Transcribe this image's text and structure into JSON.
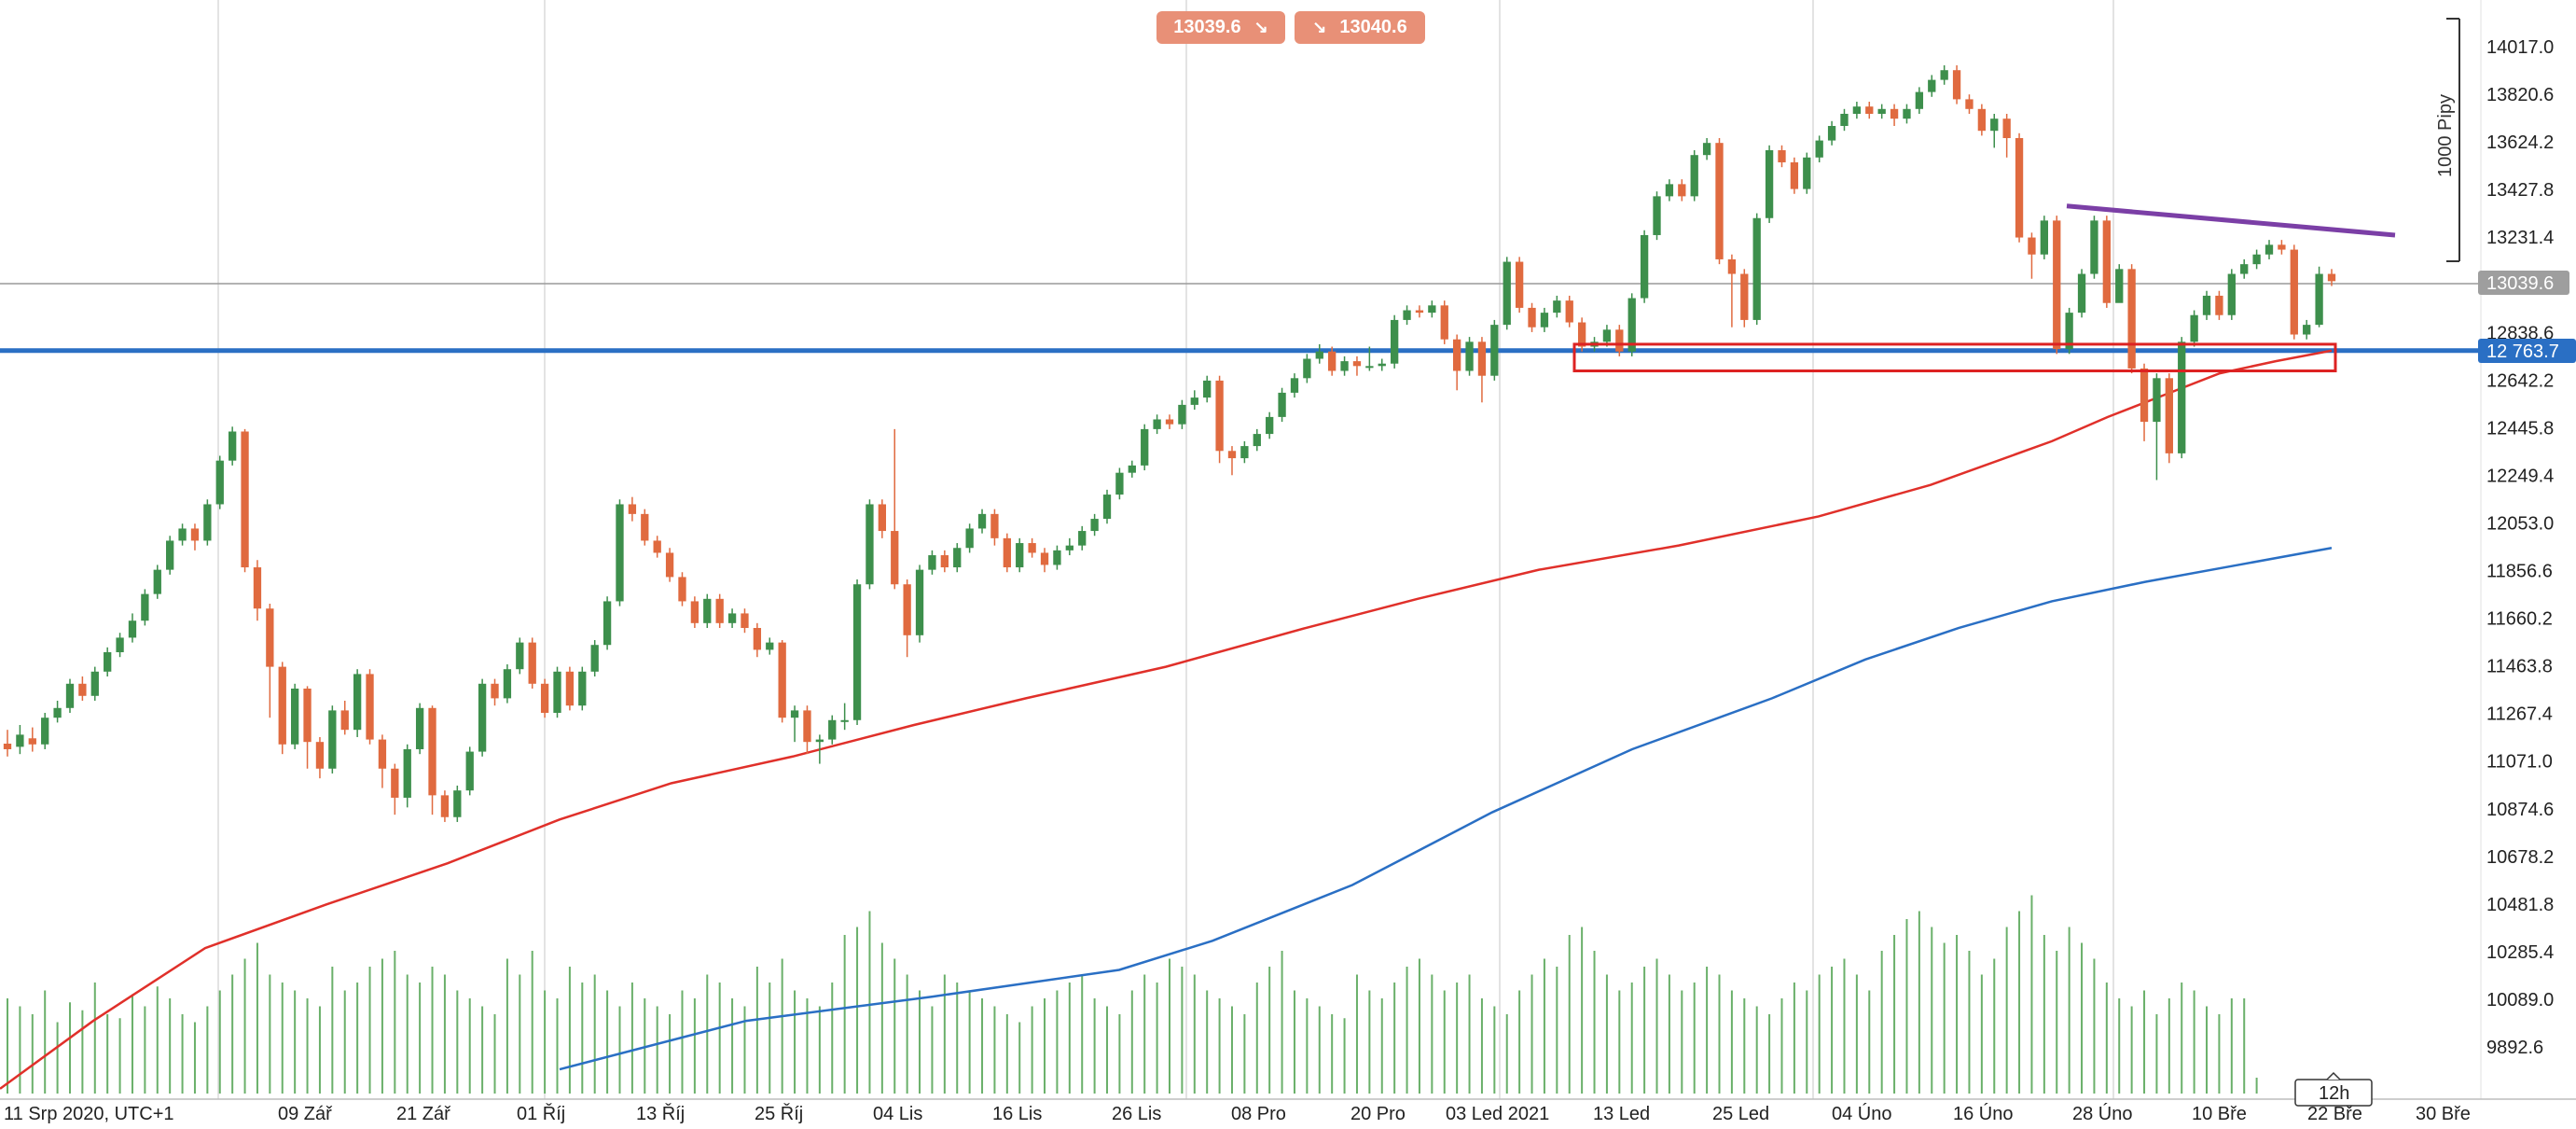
{
  "quote": {
    "sell_price": "13039.6",
    "buy_price": "13040.6",
    "sell_arrow": "↘",
    "buy_arrow": "↘"
  },
  "timeframe": "12h",
  "scale_note": "1000 Pipy",
  "current_price_label": "13039.6",
  "support_label": "12 763.7",
  "colors": {
    "up_candle": "#3d8f4c",
    "down_candle": "#e06a3f",
    "ma_fast": "#e0302a",
    "ma_slow": "#2a6fc4",
    "support_line": "#2a6fc4",
    "trendline": "#7b3fa6",
    "zone": "#dd2222",
    "volume": "#6ab06a",
    "quote_button": "#e89077"
  },
  "chart_data": {
    "type": "candlestick",
    "x_tick_labels": [
      "11 Srp 2020, UTC+1",
      "09 Zář",
      "21 Zář",
      "01 Říj",
      "13 Říj",
      "25 Říj",
      "04 Lis",
      "16 Lis",
      "26 Lis",
      "08 Pro",
      "20 Pro",
      "03 Led 2021",
      "13 Led",
      "25 Led",
      "04 Úno",
      "16 Úno",
      "28 Úno",
      "10 Bře",
      "22 Bře",
      "30 Bře"
    ],
    "y_tick_labels": [
      "14017.0",
      "13820.6",
      "13624.2",
      "13427.8",
      "13231.4",
      "12838.6",
      "12642.2",
      "12445.8",
      "12249.4",
      "12053.0",
      "11856.6",
      "11660.2",
      "11463.8",
      "11267.4",
      "11071.0",
      "10874.6",
      "10678.2",
      "10481.8",
      "10285.4",
      "10089.0",
      "9892.6"
    ],
    "ylim": [
      9790,
      14170
    ],
    "grid": "vertical",
    "horizontal_levels": [
      {
        "name": "support",
        "value": 12763.7
      },
      {
        "name": "current",
        "value": 13039.6
      }
    ],
    "zone": {
      "from": "13 Led",
      "to": "22 Bře",
      "low": 12680,
      "high": 12790
    },
    "trendline": [
      {
        "x": "28 Úno",
        "y": 13360
      },
      {
        "x": "30 Bře",
        "y": 13240
      }
    ],
    "candles": [
      [
        11143,
        11120,
        11200,
        11090
      ],
      [
        11130,
        11180,
        11220,
        11100
      ],
      [
        11165,
        11140,
        11210,
        11110
      ],
      [
        11140,
        11250,
        11270,
        11120
      ],
      [
        11250,
        11290,
        11320,
        11230
      ],
      [
        11290,
        11390,
        11410,
        11270
      ],
      [
        11390,
        11340,
        11420,
        11320
      ],
      [
        11340,
        11440,
        11460,
        11320
      ],
      [
        11440,
        11520,
        11540,
        11420
      ],
      [
        11520,
        11580,
        11600,
        11500
      ],
      [
        11580,
        11650,
        11680,
        11560
      ],
      [
        11650,
        11760,
        11780,
        11630
      ],
      [
        11760,
        11860,
        11880,
        11740
      ],
      [
        11860,
        11980,
        12000,
        11840
      ],
      [
        11980,
        12030,
        12050,
        11960
      ],
      [
        12030,
        11980,
        12050,
        11940
      ],
      [
        11980,
        12130,
        12150,
        11960
      ],
      [
        12130,
        12310,
        12330,
        12110
      ],
      [
        12310,
        12430,
        12450,
        12290
      ],
      [
        12430,
        11870,
        12440,
        11850
      ],
      [
        11870,
        11700,
        11900,
        11650
      ],
      [
        11700,
        11460,
        11720,
        11250
      ],
      [
        11460,
        11140,
        11480,
        11100
      ],
      [
        11140,
        11370,
        11390,
        11120
      ],
      [
        11370,
        11150,
        11380,
        11040
      ],
      [
        11150,
        11040,
        11170,
        11000
      ],
      [
        11040,
        11280,
        11300,
        11020
      ],
      [
        11280,
        11200,
        11320,
        11180
      ],
      [
        11200,
        11430,
        11450,
        11170
      ],
      [
        11430,
        11160,
        11450,
        11140
      ],
      [
        11160,
        11040,
        11180,
        10960
      ],
      [
        11040,
        10920,
        11060,
        10850
      ],
      [
        10920,
        11120,
        11140,
        10880
      ],
      [
        11120,
        11290,
        11310,
        11100
      ],
      [
        11290,
        10930,
        11300,
        10850
      ],
      [
        10930,
        10840,
        10950,
        10820
      ],
      [
        10840,
        10950,
        10970,
        10820
      ],
      [
        10950,
        11110,
        11130,
        10930
      ],
      [
        11110,
        11390,
        11410,
        11090
      ],
      [
        11390,
        11330,
        11410,
        11300
      ],
      [
        11330,
        11450,
        11470,
        11310
      ],
      [
        11450,
        11560,
        11580,
        11430
      ],
      [
        11560,
        11390,
        11580,
        11370
      ],
      [
        11390,
        11270,
        11410,
        11250
      ],
      [
        11270,
        11440,
        11460,
        11250
      ],
      [
        11440,
        11300,
        11460,
        11280
      ],
      [
        11300,
        11440,
        11460,
        11280
      ],
      [
        11440,
        11550,
        11570,
        11420
      ],
      [
        11550,
        11730,
        11750,
        11530
      ],
      [
        11730,
        12130,
        12150,
        11710
      ],
      [
        12130,
        12090,
        12160,
        12060
      ],
      [
        12090,
        11980,
        12110,
        11960
      ],
      [
        11980,
        11930,
        12000,
        11910
      ],
      [
        11930,
        11830,
        11950,
        11810
      ],
      [
        11830,
        11730,
        11850,
        11710
      ],
      [
        11730,
        11640,
        11750,
        11620
      ],
      [
        11640,
        11740,
        11760,
        11620
      ],
      [
        11740,
        11640,
        11760,
        11620
      ],
      [
        11640,
        11680,
        11700,
        11620
      ],
      [
        11680,
        11620,
        11700,
        11600
      ],
      [
        11620,
        11530,
        11640,
        11500
      ],
      [
        11530,
        11560,
        11580,
        11510
      ],
      [
        11560,
        11250,
        11570,
        11230
      ],
      [
        11250,
        11280,
        11300,
        11150
      ],
      [
        11280,
        11150,
        11300,
        11100
      ],
      [
        11150,
        11160,
        11180,
        11060
      ],
      [
        11160,
        11240,
        11260,
        11140
      ],
      [
        11240,
        11240,
        11310,
        11200
      ],
      [
        11240,
        11800,
        11820,
        11220
      ],
      [
        11800,
        12130,
        12150,
        11780
      ],
      [
        12130,
        12020,
        12150,
        11990
      ],
      [
        12020,
        11800,
        12440,
        11780
      ],
      [
        11800,
        11590,
        11820,
        11500
      ],
      [
        11590,
        11860,
        11880,
        11560
      ],
      [
        11860,
        11920,
        11940,
        11840
      ],
      [
        11920,
        11870,
        11940,
        11850
      ],
      [
        11870,
        11950,
        11970,
        11850
      ],
      [
        11950,
        12030,
        12050,
        11930
      ],
      [
        12030,
        12090,
        12110,
        12010
      ],
      [
        12090,
        11990,
        12110,
        11960
      ],
      [
        11990,
        11870,
        12010,
        11850
      ],
      [
        11870,
        11970,
        11990,
        11850
      ],
      [
        11970,
        11930,
        11990,
        11910
      ],
      [
        11930,
        11880,
        11950,
        11850
      ],
      [
        11880,
        11940,
        11960,
        11860
      ],
      [
        11940,
        11960,
        11990,
        11920
      ],
      [
        11960,
        12020,
        12040,
        11940
      ],
      [
        12020,
        12070,
        12090,
        12000
      ],
      [
        12070,
        12170,
        12190,
        12050
      ],
      [
        12170,
        12260,
        12280,
        12150
      ],
      [
        12260,
        12290,
        12310,
        12240
      ],
      [
        12290,
        12440,
        12460,
        12270
      ],
      [
        12440,
        12480,
        12500,
        12420
      ],
      [
        12480,
        12460,
        12500,
        12440
      ],
      [
        12460,
        12540,
        12560,
        12440
      ],
      [
        12540,
        12570,
        12600,
        12520
      ],
      [
        12570,
        12640,
        12660,
        12550
      ],
      [
        12640,
        12350,
        12660,
        12300
      ],
      [
        12350,
        12320,
        12370,
        12250
      ],
      [
        12320,
        12370,
        12390,
        12300
      ],
      [
        12370,
        12420,
        12440,
        12350
      ],
      [
        12420,
        12490,
        12510,
        12400
      ],
      [
        12490,
        12590,
        12610,
        12470
      ],
      [
        12590,
        12650,
        12670,
        12570
      ],
      [
        12650,
        12730,
        12750,
        12630
      ],
      [
        12730,
        12760,
        12790,
        12710
      ],
      [
        12760,
        12680,
        12780,
        12660
      ],
      [
        12680,
        12720,
        12740,
        12660
      ],
      [
        12720,
        12700,
        12740,
        12660
      ],
      [
        12700,
        12700,
        12780,
        12680
      ],
      [
        12700,
        12710,
        12730,
        12680
      ],
      [
        12710,
        12890,
        12910,
        12690
      ],
      [
        12890,
        12930,
        12950,
        12870
      ],
      [
        12930,
        12920,
        12950,
        12900
      ],
      [
        12920,
        12950,
        12970,
        12900
      ],
      [
        12950,
        12810,
        12970,
        12790
      ],
      [
        12810,
        12680,
        12830,
        12600
      ],
      [
        12680,
        12800,
        12820,
        12660
      ],
      [
        12800,
        12660,
        12820,
        12550
      ],
      [
        12660,
        12870,
        12890,
        12640
      ],
      [
        12870,
        13130,
        13150,
        12850
      ],
      [
        13130,
        12940,
        13150,
        12920
      ],
      [
        12940,
        12860,
        12960,
        12840
      ],
      [
        12860,
        12920,
        12940,
        12840
      ],
      [
        12920,
        12970,
        12990,
        12900
      ],
      [
        12970,
        12880,
        12990,
        12860
      ],
      [
        12880,
        12780,
        12900,
        12760
      ],
      [
        12780,
        12800,
        12820,
        12760
      ],
      [
        12800,
        12850,
        12870,
        12780
      ],
      [
        12850,
        12760,
        12870,
        12740
      ],
      [
        12760,
        12980,
        13000,
        12740
      ],
      [
        12980,
        13240,
        13260,
        12960
      ],
      [
        13240,
        13400,
        13420,
        13220
      ],
      [
        13400,
        13450,
        13470,
        13380
      ],
      [
        13450,
        13400,
        13470,
        13380
      ],
      [
        13400,
        13570,
        13590,
        13380
      ],
      [
        13570,
        13620,
        13640,
        13550
      ],
      [
        13620,
        13140,
        13640,
        13120
      ],
      [
        13140,
        13080,
        13160,
        12860
      ],
      [
        13080,
        12890,
        13100,
        12860
      ],
      [
        12890,
        13310,
        13330,
        12870
      ],
      [
        13310,
        13590,
        13610,
        13290
      ],
      [
        13590,
        13540,
        13610,
        13520
      ],
      [
        13540,
        13430,
        13560,
        13410
      ],
      [
        13430,
        13560,
        13580,
        13410
      ],
      [
        13560,
        13630,
        13650,
        13540
      ],
      [
        13630,
        13690,
        13710,
        13610
      ],
      [
        13690,
        13740,
        13760,
        13670
      ],
      [
        13740,
        13770,
        13790,
        13720
      ],
      [
        13770,
        13740,
        13790,
        13720
      ],
      [
        13740,
        13760,
        13780,
        13720
      ],
      [
        13760,
        13720,
        13780,
        13690
      ],
      [
        13720,
        13760,
        13780,
        13700
      ],
      [
        13760,
        13830,
        13850,
        13740
      ],
      [
        13830,
        13880,
        13900,
        13810
      ],
      [
        13880,
        13920,
        13940,
        13860
      ],
      [
        13920,
        13800,
        13940,
        13780
      ],
      [
        13800,
        13760,
        13820,
        13740
      ],
      [
        13760,
        13670,
        13780,
        13650
      ],
      [
        13670,
        13720,
        13740,
        13600
      ],
      [
        13720,
        13640,
        13740,
        13560
      ],
      [
        13640,
        13230,
        13660,
        13210
      ],
      [
        13230,
        13160,
        13250,
        13060
      ],
      [
        13160,
        13300,
        13320,
        13140
      ],
      [
        13300,
        12770,
        13320,
        12750
      ],
      [
        12770,
        12920,
        12940,
        12750
      ],
      [
        12920,
        13080,
        13100,
        12900
      ],
      [
        13080,
        13300,
        13320,
        13060
      ],
      [
        13300,
        12960,
        13320,
        12940
      ],
      [
        12960,
        13100,
        13120,
        13060
      ],
      [
        13100,
        12690,
        13120,
        12670
      ],
      [
        12690,
        12470,
        12710,
        12390
      ],
      [
        12470,
        12650,
        12670,
        12230
      ],
      [
        12650,
        12340,
        12670,
        12300
      ],
      [
        12340,
        12800,
        12820,
        12320
      ],
      [
        12800,
        12910,
        12930,
        12780
      ],
      [
        12910,
        12990,
        13010,
        12890
      ],
      [
        12990,
        12910,
        13010,
        12890
      ],
      [
        12910,
        13080,
        13100,
        12890
      ],
      [
        13080,
        13120,
        13140,
        13060
      ],
      [
        13120,
        13160,
        13180,
        13100
      ],
      [
        13160,
        13200,
        13220,
        13140
      ],
      [
        13200,
        13180,
        13220,
        13160
      ],
      [
        13180,
        12830,
        13200,
        12810
      ],
      [
        12830,
        12870,
        12890,
        12810
      ],
      [
        12870,
        13080,
        13110,
        12860
      ],
      [
        13080,
        13050,
        13100,
        13030
      ]
    ],
    "ma_fast": [
      [
        0,
        9720
      ],
      [
        100,
        10000
      ],
      [
        220,
        10300
      ],
      [
        350,
        10480
      ],
      [
        480,
        10650
      ],
      [
        600,
        10830
      ],
      [
        720,
        10980
      ],
      [
        850,
        11090
      ],
      [
        980,
        11220
      ],
      [
        1100,
        11330
      ],
      [
        1250,
        11460
      ],
      [
        1400,
        11620
      ],
      [
        1520,
        11740
      ],
      [
        1650,
        11860
      ],
      [
        1800,
        11960
      ],
      [
        1950,
        12080
      ],
      [
        2070,
        12210
      ],
      [
        2200,
        12390
      ],
      [
        2260,
        12490
      ],
      [
        2320,
        12580
      ],
      [
        2380,
        12670
      ],
      [
        2440,
        12720
      ],
      [
        2500,
        12763.7
      ]
    ],
    "ma_slow": [
      [
        600,
        9800
      ],
      [
        800,
        10000
      ],
      [
        1000,
        10100
      ],
      [
        1200,
        10210
      ],
      [
        1300,
        10330
      ],
      [
        1450,
        10560
      ],
      [
        1600,
        10860
      ],
      [
        1750,
        11120
      ],
      [
        1900,
        11330
      ],
      [
        2000,
        11490
      ],
      [
        2100,
        11620
      ],
      [
        2200,
        11730
      ],
      [
        2300,
        11810
      ],
      [
        2400,
        11880
      ],
      [
        2500,
        11950
      ]
    ],
    "volumes": [
      120,
      110,
      100,
      130,
      90,
      115,
      105,
      140,
      100,
      95,
      125,
      110,
      135,
      120,
      100,
      90,
      110,
      130,
      150,
      170,
      190,
      150,
      140,
      130,
      120,
      110,
      160,
      130,
      140,
      160,
      170,
      180,
      150,
      140,
      160,
      150,
      130,
      120,
      110,
      100,
      170,
      150,
      180,
      130,
      120,
      160,
      140,
      150,
      130,
      110,
      140,
      120,
      110,
      100,
      130,
      120,
      150,
      140,
      120,
      110,
      160,
      140,
      170,
      130,
      120,
      110,
      140,
      200,
      210,
      230,
      190,
      170,
      150,
      130,
      110,
      150,
      140,
      130,
      120,
      110,
      100,
      90,
      110,
      120,
      130,
      140,
      150,
      120,
      110,
      100,
      130,
      150,
      140,
      170,
      160,
      150,
      130,
      120,
      110,
      100,
      140,
      160,
      180,
      130,
      120,
      110,
      100,
      95,
      150,
      130,
      120,
      140,
      160,
      170,
      150,
      130,
      140,
      150,
      120,
      110,
      100,
      130,
      150,
      170,
      160,
      200,
      210,
      180,
      150,
      130,
      140,
      160,
      170,
      150,
      130,
      140,
      160,
      150,
      130,
      120,
      110,
      100,
      120,
      140,
      130,
      150,
      160,
      170,
      150,
      130,
      180,
      200,
      220,
      230,
      210,
      190,
      200,
      180,
      150,
      170,
      210,
      230,
      250,
      200,
      180,
      210,
      190,
      170,
      140,
      120,
      110,
      130,
      100,
      120,
      140,
      130,
      110,
      100,
      120,
      120,
      20
    ]
  }
}
